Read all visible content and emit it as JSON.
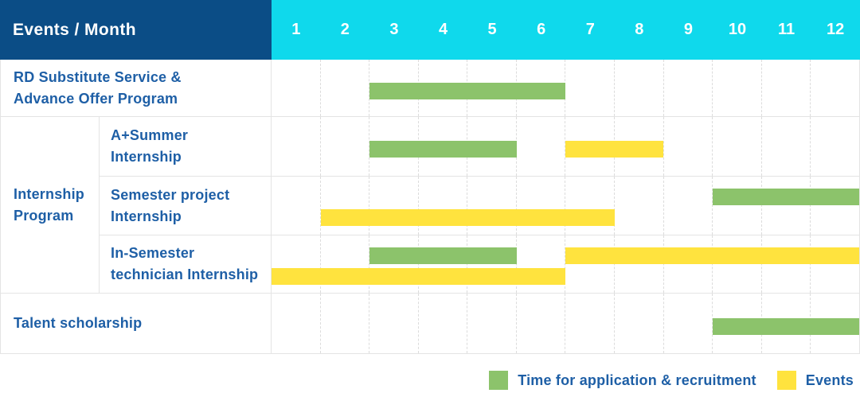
{
  "header": {
    "label": "Events / Month",
    "months": [
      "1",
      "2",
      "3",
      "4",
      "5",
      "6",
      "7",
      "8",
      "9",
      "10",
      "11",
      "12"
    ]
  },
  "rows": [
    {
      "type": "simple",
      "label_lines": [
        "RD Substitute Service &",
        "Advance Offer Program"
      ],
      "bars": [
        {
          "type": "recruitment",
          "start": 3,
          "end": 6,
          "lane": "center"
        }
      ]
    },
    {
      "type": "group",
      "label_lines": [
        "Internship",
        "Program"
      ],
      "children": [
        {
          "label_lines": [
            "A+Summer",
            "Internship"
          ],
          "bars": [
            {
              "type": "recruitment",
              "start": 3,
              "end": 5,
              "lane": "center"
            },
            {
              "type": "event",
              "start": 7,
              "end": 8,
              "lane": "center"
            }
          ]
        },
        {
          "label_lines": [
            "Semester project",
            "Internship"
          ],
          "bars": [
            {
              "type": "recruitment",
              "start": 10,
              "end": 12,
              "lane": "top"
            },
            {
              "type": "event",
              "start": 2,
              "end": 7,
              "lane": "bottom"
            }
          ]
        },
        {
          "label_lines": [
            "In-Semester",
            "technician Internship"
          ],
          "bars": [
            {
              "type": "recruitment",
              "start": 3,
              "end": 5,
              "lane": "top"
            },
            {
              "type": "event",
              "start": 7,
              "end": 12,
              "lane": "top"
            },
            {
              "type": "event",
              "start": 1,
              "end": 6,
              "lane": "bottom"
            }
          ]
        }
      ]
    },
    {
      "type": "simple",
      "label_lines": [
        "Talent scholarship"
      ],
      "bars": [
        {
          "type": "recruitment",
          "start": 10,
          "end": 12,
          "lane": "center"
        }
      ]
    }
  ],
  "legend": {
    "items": [
      {
        "type": "recruitment",
        "label": "Time for application & recruitment"
      },
      {
        "type": "event",
        "label": "Events"
      }
    ]
  },
  "colors": {
    "header_bg": "#0B4D86",
    "months_bg": "#0FD9EC",
    "row_label_text": "#1E5FA6",
    "recruitment": "#8CC36B",
    "event": "#FFE33E"
  },
  "chart_data": {
    "type": "bar",
    "subtype": "gantt",
    "x_axis_label": "Events / Month",
    "x_ticks": [
      1,
      2,
      3,
      4,
      5,
      6,
      7,
      8,
      9,
      10,
      11,
      12
    ],
    "xlim": [
      1,
      12
    ],
    "grid": "vertical-dashed",
    "legend_position": "bottom-right",
    "legend": [
      "Time for application & recruitment",
      "Events"
    ],
    "series": [
      {
        "row": "RD Substitute Service & Advance Offer Program",
        "group": null,
        "segments": [
          {
            "kind": "Time for application & recruitment",
            "start_month": 3,
            "end_month": 6
          }
        ]
      },
      {
        "row": "A+Summer Internship",
        "group": "Internship Program",
        "segments": [
          {
            "kind": "Time for application & recruitment",
            "start_month": 3,
            "end_month": 5
          },
          {
            "kind": "Events",
            "start_month": 7,
            "end_month": 8
          }
        ]
      },
      {
        "row": "Semester project Internship",
        "group": "Internship Program",
        "segments": [
          {
            "kind": "Time for application & recruitment",
            "start_month": 10,
            "end_month": 12
          },
          {
            "kind": "Events",
            "start_month": 2,
            "end_month": 7
          }
        ]
      },
      {
        "row": "In-Semester technician Internship",
        "group": "Internship Program",
        "segments": [
          {
            "kind": "Time for application & recruitment",
            "start_month": 3,
            "end_month": 5
          },
          {
            "kind": "Events",
            "start_month": 7,
            "end_month": 12
          },
          {
            "kind": "Events",
            "start_month": 1,
            "end_month": 6
          }
        ]
      },
      {
        "row": "Talent scholarship",
        "group": null,
        "segments": [
          {
            "kind": "Time for application & recruitment",
            "start_month": 10,
            "end_month": 12
          }
        ]
      }
    ]
  }
}
